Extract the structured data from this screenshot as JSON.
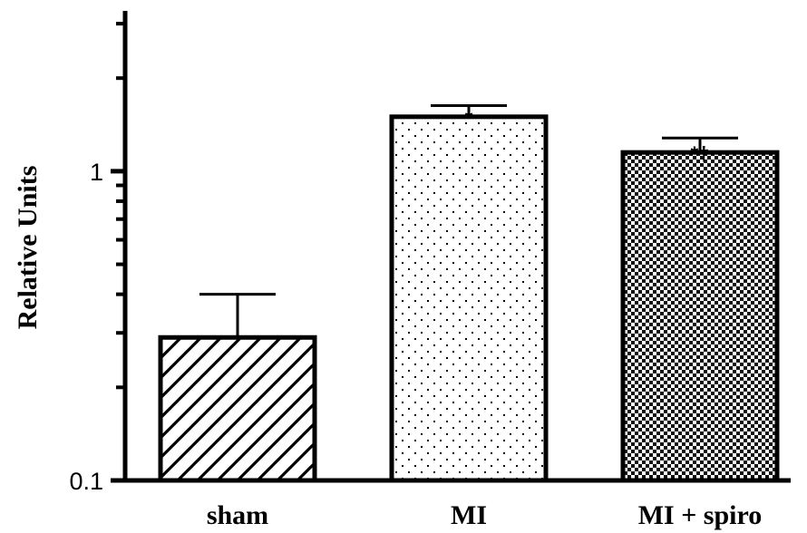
{
  "chart_data": {
    "type": "bar",
    "title": "",
    "xlabel": "",
    "ylabel": "Relative Units",
    "yscale": "log",
    "ylim": [
      0.1,
      3.3
    ],
    "ytick_values": [
      0.1,
      1
    ],
    "ytick_labels": [
      "0.1",
      "1"
    ],
    "categories": [
      "sham",
      "MI",
      "MI + spiro"
    ],
    "values": [
      0.29,
      1.5,
      1.15
    ],
    "error_upper": [
      0.4,
      1.63,
      1.28
    ],
    "significance_markers": [
      "",
      "*",
      "*†"
    ],
    "fill_patterns": [
      "diagonal-hatch",
      "fine-dots",
      "checkerboard"
    ],
    "colors": {
      "stroke": "#000000",
      "background": "#ffffff"
    },
    "grid": false,
    "legend": "none"
  }
}
